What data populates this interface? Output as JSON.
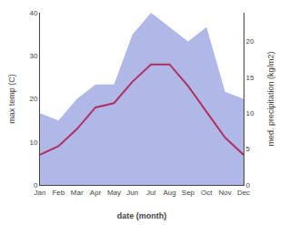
{
  "chart_data": {
    "type": "line",
    "xlabel": "date (month)",
    "ylabel": "max temp (C)",
    "y2label": "med. precipitation (kg/m2)",
    "categories": [
      "Jan",
      "Feb",
      "Mar",
      "Apr",
      "May",
      "Jun",
      "Jul",
      "Aug",
      "Sep",
      "Oct",
      "Nov",
      "Dec"
    ],
    "series": [
      {
        "type": "area",
        "color": "#b0b8e8",
        "axis": "y2",
        "values": [
          10,
          9,
          12,
          14,
          14,
          21,
          24,
          22,
          20,
          22,
          13,
          12
        ]
      },
      {
        "type": "line",
        "color": "#b03060",
        "values": [
          7,
          9,
          13,
          18,
          19,
          24,
          28,
          28,
          23,
          17,
          11,
          7
        ]
      }
    ],
    "ylim": [
      0,
      40
    ],
    "yticks": [
      0,
      10,
      20,
      30,
      40
    ],
    "y2lim": [
      0,
      24
    ],
    "y2ticks": [
      0,
      5,
      10,
      15,
      20
    ],
    "grid": false
  }
}
